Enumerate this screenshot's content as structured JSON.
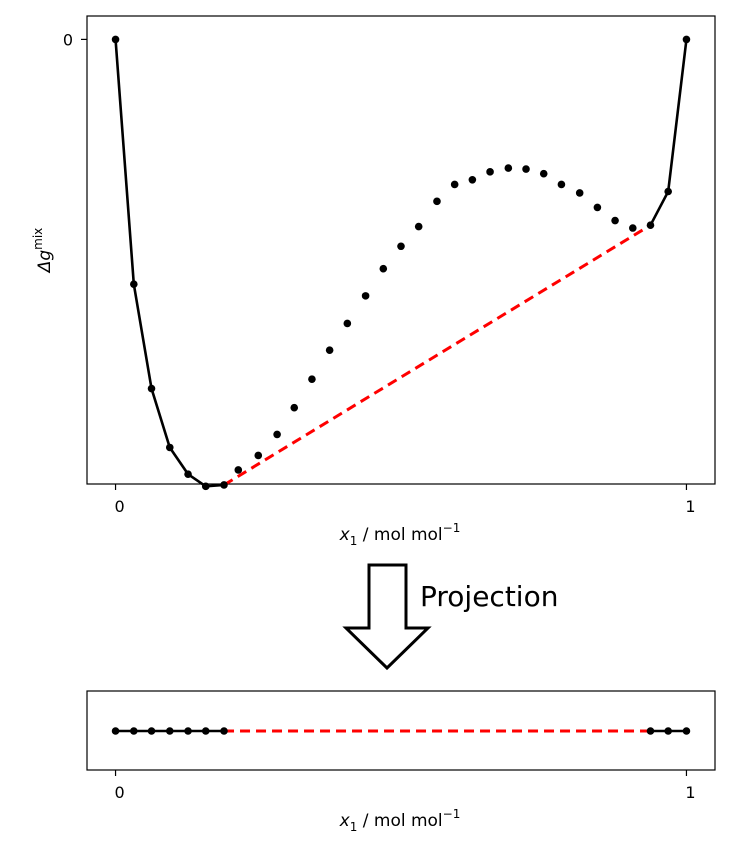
{
  "arrow_label": "Projection",
  "chart_data": [
    {
      "type": "line",
      "xlabel_main": "x",
      "xlabel_sub": "1",
      "xlabel_unit": " / mol mol",
      "xlabel_exp": "−1",
      "ylabel_main": "Δg",
      "ylabel_sup": "mix",
      "xlim": [
        -0.05,
        1.05
      ],
      "ylim": [
        -0.95,
        0.05
      ],
      "xticks": [
        0,
        1
      ],
      "xtick_labels": [
        "0",
        "1"
      ],
      "yticks": [
        0
      ],
      "ytick_labels": [
        "0"
      ],
      "grid": false,
      "series": [
        {
          "role": "stable",
          "color": "#000000",
          "style": "solid-with-markers",
          "segments": [
            {
              "x": [
                0.0,
                0.032,
                0.063,
                0.095,
                0.127,
                0.158,
                0.19
              ],
              "y": [
                0.0,
                -0.523,
                -0.746,
                -0.872,
                -0.929,
                -0.955,
                -0.952
              ]
            },
            {
              "x": [
                0.937,
                0.968,
                1.0
              ],
              "y": [
                -0.397,
                -0.325,
                0.0
              ]
            }
          ]
        },
        {
          "role": "unstable",
          "color": "#000000",
          "style": "markers",
          "x": [
            0.215,
            0.25,
            0.283,
            0.313,
            0.344,
            0.375,
            0.406,
            0.438,
            0.469,
            0.5,
            0.531,
            0.563,
            0.594,
            0.625,
            0.656,
            0.688,
            0.719,
            0.75,
            0.781,
            0.813,
            0.844,
            0.875,
            0.906
          ],
          "y": [
            -0.92,
            -0.889,
            -0.844,
            -0.787,
            -0.726,
            -0.664,
            -0.607,
            -0.548,
            -0.49,
            -0.442,
            -0.4,
            -0.346,
            -0.31,
            -0.3,
            -0.283,
            -0.275,
            -0.277,
            -0.287,
            -0.31,
            -0.328,
            -0.359,
            -0.387,
            -0.403
          ]
        },
        {
          "role": "common-tangent",
          "color": "#ff0000",
          "style": "dashed",
          "x": [
            0.19,
            0.937
          ],
          "y": [
            -0.952,
            -0.397
          ]
        }
      ]
    },
    {
      "type": "line",
      "xlabel_main": "x",
      "xlabel_sub": "1",
      "xlabel_unit": " / mol mol",
      "xlabel_exp": "−1",
      "xlim": [
        -0.05,
        1.05
      ],
      "xticks": [
        0,
        1
      ],
      "xtick_labels": [
        "0",
        "1"
      ],
      "grid": false,
      "series": [
        {
          "role": "stable",
          "color": "#000000",
          "style": "solid-with-markers",
          "segments": [
            {
              "x": [
                0.0,
                0.032,
                0.063,
                0.095,
                0.127,
                0.158,
                0.19
              ]
            },
            {
              "x": [
                0.937,
                0.968,
                1.0
              ]
            }
          ]
        },
        {
          "role": "common-tangent",
          "color": "#ff0000",
          "style": "dashed",
          "x": [
            0.19,
            0.937
          ]
        }
      ]
    }
  ]
}
